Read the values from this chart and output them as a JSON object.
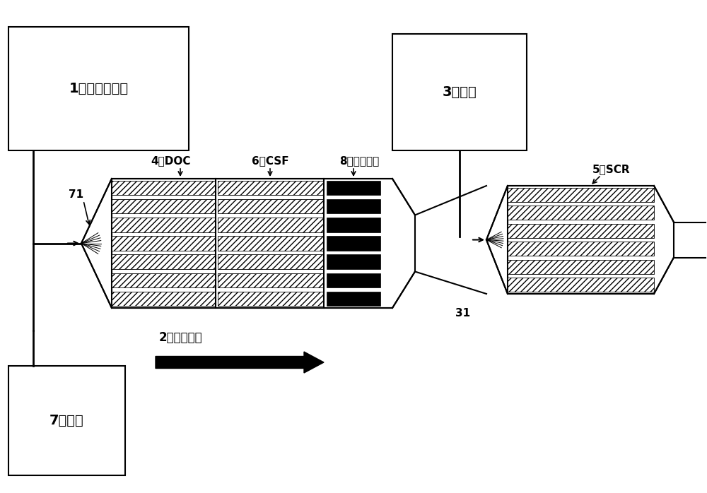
{
  "bg_color": "#ffffff",
  "box1_label": "1：柴油发动机",
  "box3_label": "3：尿素",
  "box7_label": "7：燃料",
  "label_71": "71",
  "label_31": "31",
  "label_doc": "4：DOC",
  "label_csf": "6：CSF",
  "label_capture": "8：捕获机构",
  "label_scr": "5：SCR",
  "label_flow": "2：废气流路",
  "text_color": "#000000",
  "line_color": "#000000"
}
